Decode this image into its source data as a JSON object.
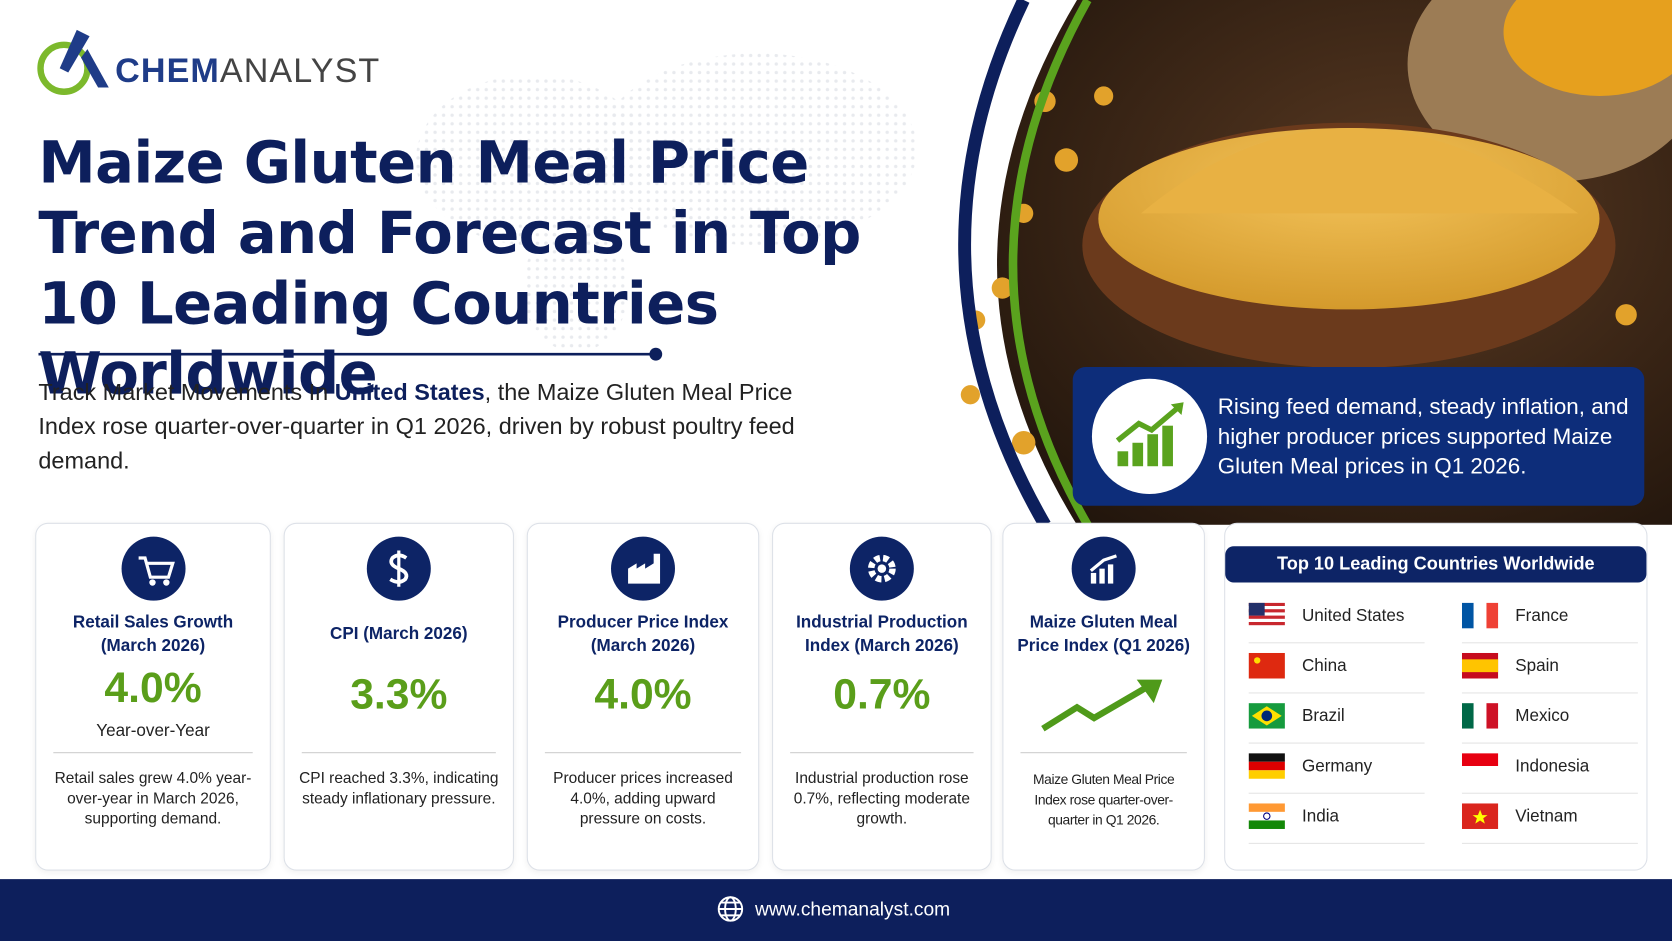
{
  "header": {
    "logo": [
      "CHEM",
      "ANALYST"
    ],
    "title": "Maize Gluten Meal Price Trend and Forecast in Top 10 Leading Countries Worldwide"
  },
  "intro": [
    "Track Market Movements In ",
    "United States",
    ", the Maize Gluten Meal Price Index rose quarter-over-quarter in Q1 2026, driven by robust poultry feed demand."
  ],
  "callout": "Rising feed demand, steady inflation, and higher producer prices supported Maize Gluten Meal prices in Q1 2026.",
  "cards": [
    {
      "title": "Retail Sales Growth (March 2026)",
      "value": "4.0%",
      "subtitle": "Year-over-Year",
      "description": "Retail sales grew 4.0% year-over-year in March 2026, supporting demand."
    },
    {
      "title": "CPI (March 2026)",
      "value": "3.3%",
      "description": "CPI reached 3.3%, indicating steady inflationary pressure."
    },
    {
      "title": "Producer Price Index (March 2026)",
      "value": "4.0%",
      "description": "Producer prices increased 4.0%, adding upward pressure on costs."
    },
    {
      "title": "Industrial Production Index (March 2026)",
      "value": "0.7%",
      "description": "Industrial production rose 0.7%, reflecting moderate growth."
    },
    {
      "title": "Maize Gluten Meal Price Index (Q1 2026)",
      "description": "Maize Gluten Meal Price Index rose quarter-over-quarter in Q1 2026."
    }
  ],
  "countries": {
    "title": "Top 10 Leading Countries Worldwide",
    "names": [
      "United States",
      "China",
      "Brazil",
      "Germany",
      "India",
      "France",
      "Spain",
      "Mexico",
      "Indonesia",
      "Vietnam"
    ]
  },
  "footer": {
    "url": "www.chemanalyst.com"
  }
}
